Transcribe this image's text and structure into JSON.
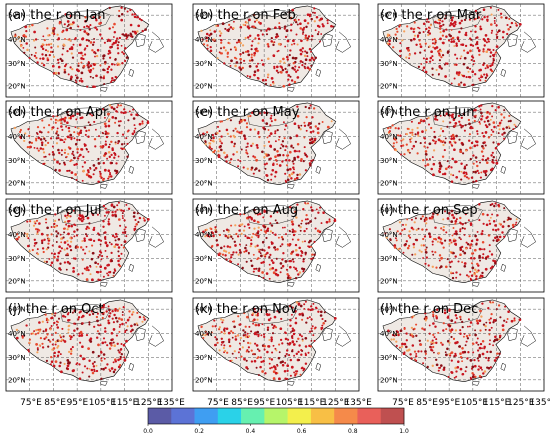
{
  "figure": {
    "panel_titles": [
      "(a) the r on Jan",
      "(b) the r on Feb",
      "(c) the r on Mar",
      "(d) the r on Apr",
      "(e) the r on May",
      "(f) the r on Jun",
      "(g) the r on Jul",
      "(h) the r on Aug",
      "(i) the r on Sep",
      "(j) the r on Oct",
      "(k) the r on Nov",
      "(l) the r on Dec"
    ],
    "lat_ticks": [
      "50°N",
      "40°N",
      "30°N",
      "20°N"
    ],
    "lon_ticks": [
      "75°E",
      "85°E",
      "95°E",
      "105°E",
      "115°E",
      "125°E",
      "135°E"
    ],
    "colorbar": {
      "tick_labels": [
        "0.0",
        "0.2",
        "0.4",
        "0.6",
        "0.8",
        "1.0"
      ],
      "colors": [
        "#5b5ba6",
        "#5c73d6",
        "#3f9ef2",
        "#2ad2e8",
        "#66f0b0",
        "#b6f56a",
        "#f3ef4c",
        "#f8bf45",
        "#f58a4a",
        "#e9605a",
        "#bf5050"
      ]
    },
    "map_colors": {
      "land_fill": "#efe9e4",
      "dot_dominant": "#c8141e",
      "dot_dark": "#8a0f16",
      "dot_mid": "#e8492e",
      "dot_light": "#f5a05a"
    }
  }
}
